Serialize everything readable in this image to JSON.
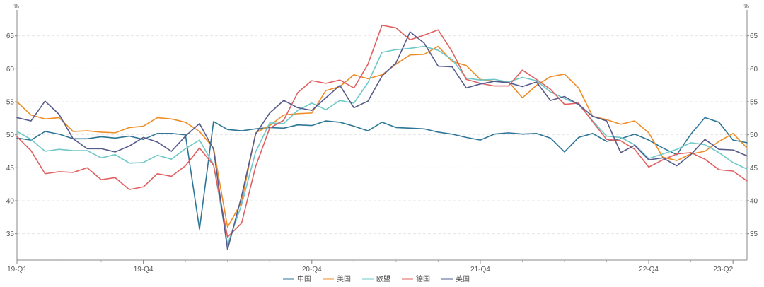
{
  "chart_data": {
    "type": "line",
    "y_unit_left": "%",
    "y_unit_right": "%",
    "ylim": [
      31,
      68.5
    ],
    "yticks": [
      35,
      40,
      45,
      50,
      55,
      60,
      65
    ],
    "grid": true,
    "legend_position": "bottom-center",
    "x_tick_labels": [
      {
        "label": "19-Q1",
        "index": 0
      },
      {
        "label": "19-Q4",
        "index": 9
      },
      {
        "label": "20-Q4",
        "index": 21
      },
      {
        "label": "21-Q4",
        "index": 33
      },
      {
        "label": "22-Q4",
        "index": 45
      },
      {
        "label": "23-Q2",
        "index": 51
      }
    ],
    "series": [
      {
        "name": "中国",
        "color": "#2e7697",
        "values": [
          49.5,
          49.2,
          50.5,
          50.1,
          49.4,
          49.4,
          49.7,
          49.5,
          49.8,
          49.3,
          50.2,
          50.2,
          50.0,
          35.7,
          52.0,
          50.8,
          50.6,
          50.9,
          51.1,
          51.0,
          51.5,
          51.4,
          52.1,
          51.9,
          51.3,
          50.6,
          51.9,
          51.1,
          51.0,
          50.9,
          50.4,
          50.1,
          49.6,
          49.2,
          50.1,
          50.3,
          50.1,
          50.2,
          49.5,
          47.4,
          49.6,
          50.2,
          49.0,
          49.4,
          50.1,
          49.2,
          48.0,
          47.0,
          50.1,
          52.6,
          51.9,
          49.2,
          48.8
        ]
      },
      {
        "name": "美国",
        "color": "#f08c25",
        "values": [
          55.0,
          53.0,
          52.4,
          52.6,
          50.5,
          50.6,
          50.4,
          50.3,
          51.1,
          51.3,
          52.6,
          52.4,
          51.9,
          50.5,
          48.0,
          36.0,
          39.8,
          50.3,
          51.4,
          53.0,
          53.2,
          53.3,
          56.7,
          57.3,
          59.1,
          58.5,
          59.1,
          60.7,
          62.1,
          62.2,
          63.4,
          61.1,
          60.5,
          58.4,
          58.1,
          58.1,
          55.6,
          57.5,
          58.8,
          59.2,
          57.1,
          52.8,
          52.3,
          51.6,
          52.1,
          50.3,
          46.6,
          46.1,
          47.1,
          47.5,
          49.0,
          50.2,
          48.0
        ]
      },
      {
        "name": "欧盟",
        "color": "#6ec8c8",
        "values": [
          50.5,
          49.3,
          47.5,
          47.8,
          47.6,
          47.6,
          46.5,
          47.0,
          45.7,
          45.8,
          46.9,
          46.3,
          47.9,
          49.2,
          45.5,
          33.4,
          39.4,
          47.4,
          51.8,
          51.7,
          53.7,
          54.8,
          53.8,
          55.2,
          54.8,
          57.9,
          62.5,
          62.9,
          63.1,
          63.4,
          62.8,
          61.4,
          58.6,
          58.3,
          58.4,
          58.0,
          58.7,
          58.2,
          56.5,
          55.5,
          54.6,
          52.1,
          49.8,
          49.6,
          48.5,
          46.4,
          47.1,
          47.8,
          48.8,
          48.5,
          47.3,
          45.8,
          44.8
        ]
      },
      {
        "name": "德国",
        "color": "#e06060",
        "values": [
          49.7,
          47.6,
          44.1,
          44.4,
          44.3,
          45.0,
          43.2,
          43.5,
          41.7,
          42.1,
          44.1,
          43.7,
          45.3,
          48.0,
          45.4,
          34.5,
          36.6,
          45.2,
          51.0,
          52.2,
          56.4,
          58.2,
          57.8,
          58.3,
          57.1,
          60.7,
          66.6,
          66.2,
          64.4,
          65.1,
          65.9,
          62.6,
          58.4,
          57.8,
          57.4,
          57.4,
          59.8,
          58.4,
          56.9,
          54.6,
          54.8,
          52.0,
          49.3,
          49.1,
          47.8,
          45.1,
          46.2,
          47.1,
          47.3,
          46.3,
          44.7,
          44.5,
          43.0
        ]
      },
      {
        "name": "英国",
        "color": "#565b8c",
        "values": [
          52.6,
          52.1,
          55.1,
          53.1,
          49.4,
          47.9,
          47.9,
          47.4,
          48.3,
          49.6,
          48.9,
          47.5,
          49.8,
          51.7,
          47.8,
          32.6,
          40.7,
          50.1,
          53.3,
          55.2,
          54.1,
          53.7,
          55.6,
          57.5,
          54.1,
          55.1,
          58.9,
          60.9,
          65.6,
          63.9,
          60.4,
          60.3,
          57.1,
          57.7,
          58.1,
          57.9,
          57.3,
          58.0,
          55.2,
          55.8,
          54.6,
          52.8,
          52.1,
          47.3,
          48.4,
          46.2,
          46.5,
          45.3,
          47.0,
          49.3,
          47.8,
          47.7,
          46.8
        ]
      }
    ]
  }
}
